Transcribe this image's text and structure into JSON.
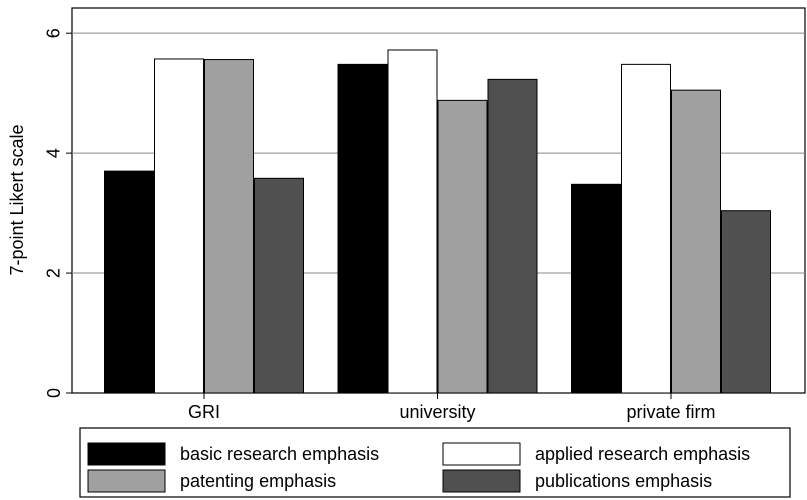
{
  "chart_data": {
    "type": "bar",
    "y_label": "7-point Likert scale",
    "categories": [
      "GRI",
      "university",
      "private firm"
    ],
    "series": [
      {
        "name": "basic research emphasis",
        "color": "#000000",
        "values": [
          3.7,
          5.48,
          3.48
        ]
      },
      {
        "name": "applied research emphasis",
        "color": "#ffffff",
        "values": [
          5.57,
          5.72,
          5.48
        ]
      },
      {
        "name": "patenting emphasis",
        "color": "#a0a0a0",
        "values": [
          5.56,
          4.88,
          5.05
        ]
      },
      {
        "name": "publications emphasis",
        "color": "#505050",
        "values": [
          3.58,
          5.23,
          3.04
        ]
      }
    ],
    "ylim": [
      0,
      6.42
    ],
    "yticks": [
      0,
      2,
      4,
      6
    ],
    "grid": true,
    "legend": "bottom"
  }
}
